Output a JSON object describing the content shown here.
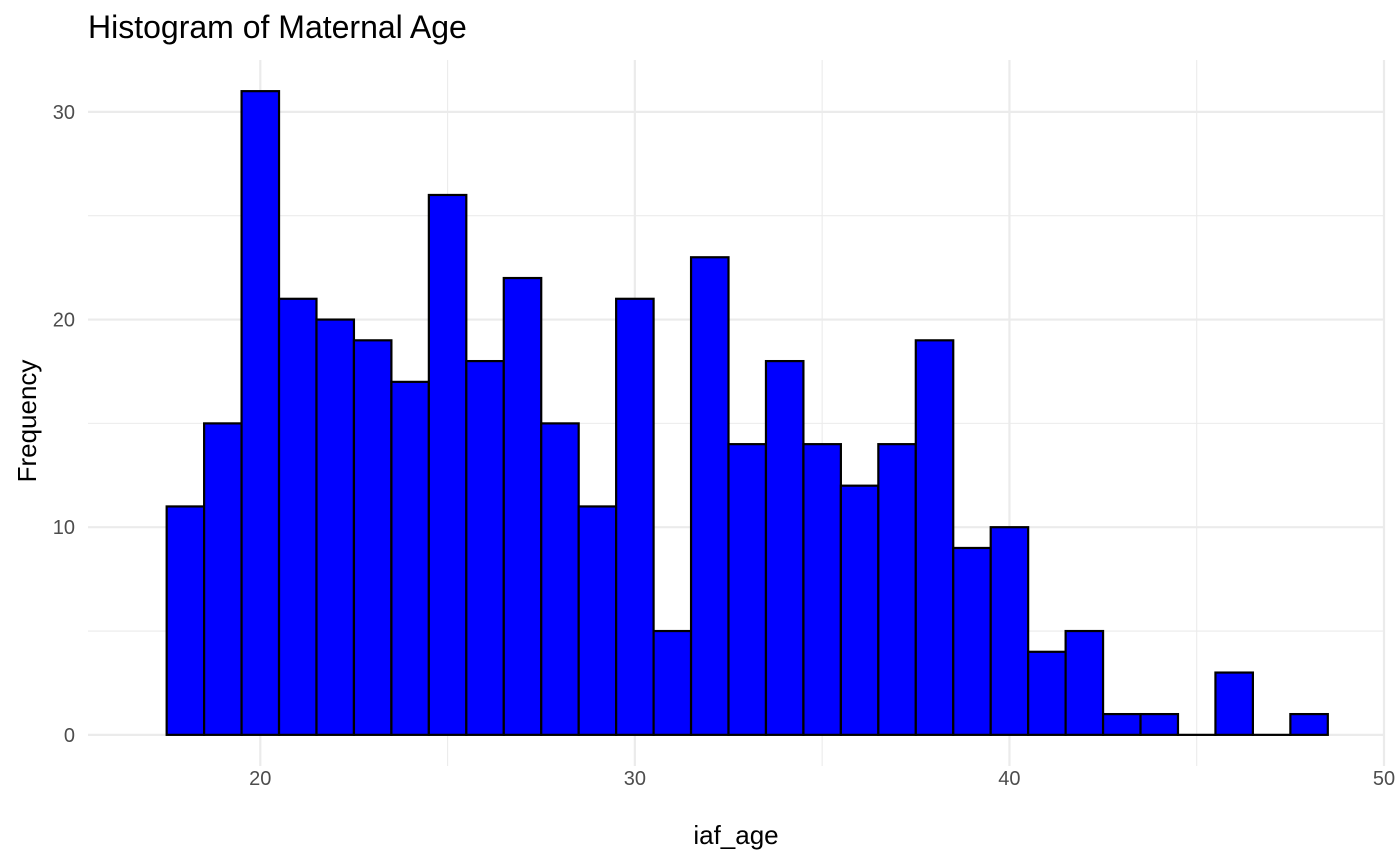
{
  "chart_data": {
    "type": "bar",
    "title": "Histogram of Maternal Age",
    "xlabel": "iaf_age",
    "ylabel": "Frequency",
    "x_ticks": [
      20,
      30,
      40,
      50
    ],
    "y_ticks": [
      0,
      10,
      20,
      30
    ],
    "xlim": [
      15.4,
      50
    ],
    "ylim": [
      -1.5,
      32.5
    ],
    "bin_width": 1,
    "bins": [
      {
        "center": 18,
        "count": 11
      },
      {
        "center": 19,
        "count": 15
      },
      {
        "center": 20,
        "count": 31
      },
      {
        "center": 21,
        "count": 21
      },
      {
        "center": 22,
        "count": 20
      },
      {
        "center": 23,
        "count": 19
      },
      {
        "center": 24,
        "count": 17
      },
      {
        "center": 25,
        "count": 26
      },
      {
        "center": 26,
        "count": 18
      },
      {
        "center": 27,
        "count": 22
      },
      {
        "center": 28,
        "count": 15
      },
      {
        "center": 29,
        "count": 11
      },
      {
        "center": 30,
        "count": 21
      },
      {
        "center": 31,
        "count": 5
      },
      {
        "center": 32,
        "count": 23
      },
      {
        "center": 33,
        "count": 14
      },
      {
        "center": 34,
        "count": 18
      },
      {
        "center": 35,
        "count": 14
      },
      {
        "center": 36,
        "count": 12
      },
      {
        "center": 37,
        "count": 14
      },
      {
        "center": 38,
        "count": 19
      },
      {
        "center": 39,
        "count": 9
      },
      {
        "center": 40,
        "count": 10
      },
      {
        "center": 41,
        "count": 4
      },
      {
        "center": 42,
        "count": 5
      },
      {
        "center": 43,
        "count": 1
      },
      {
        "center": 44,
        "count": 1
      },
      {
        "center": 45,
        "count": 0
      },
      {
        "center": 46,
        "count": 3
      },
      {
        "center": 47,
        "count": 0
      },
      {
        "center": 48,
        "count": 1
      }
    ],
    "bar_fill": "#0000ff",
    "bar_outline": "#000000",
    "grid": true,
    "legend": "none"
  }
}
